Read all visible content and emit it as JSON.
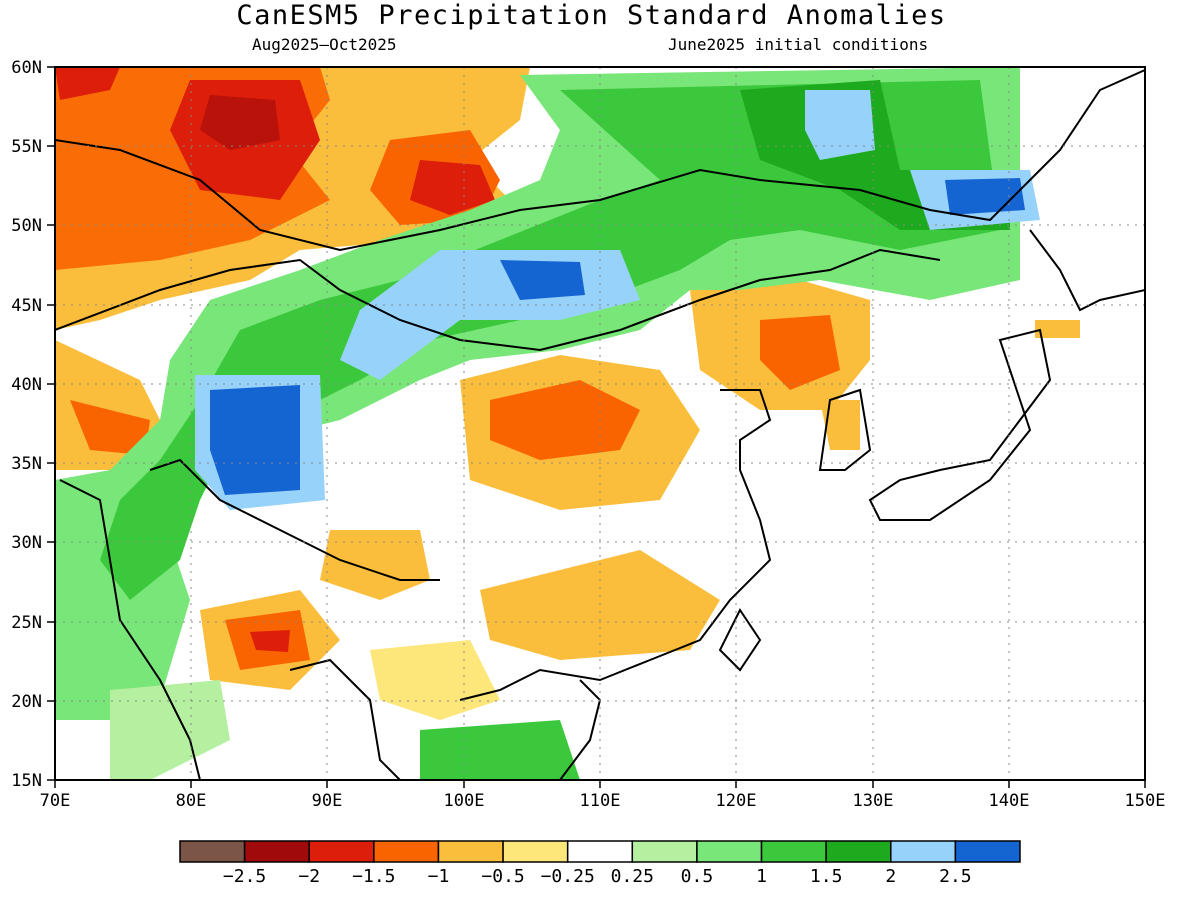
{
  "title": "CanESM5 Precipitation Standard Anomalies",
  "subtitle_left": "Aug2025—Oct2025",
  "subtitle_right": "June2025 initial conditions",
  "map": {
    "lon_range": [
      70,
      150
    ],
    "lat_range": [
      15,
      60
    ],
    "lon_ticks": [
      "70E",
      "80E",
      "90E",
      "100E",
      "110E",
      "120E",
      "130E",
      "140E",
      "150E"
    ],
    "lat_ticks": [
      "15N",
      "20N",
      "25N",
      "30N",
      "35N",
      "40N",
      "45N",
      "50N",
      "55N",
      "60N"
    ],
    "gridlines": "dotted"
  },
  "colorbar": {
    "colors": [
      "#7a5548",
      "#a00a0a",
      "#dc1e0a",
      "#fa6400",
      "#fbbe3c",
      "#fde67a",
      "#ffffff",
      "#b4f0a0",
      "#78e678",
      "#3cc83c",
      "#1eaa1e",
      "#96d2fa",
      "#1464d2"
    ],
    "labels": [
      "−2.5",
      "−2",
      "−1.5",
      "−1",
      "−0.5",
      "−0.25",
      "0.25",
      "0.5",
      "1",
      "1.5",
      "2",
      "2.5"
    ]
  }
}
